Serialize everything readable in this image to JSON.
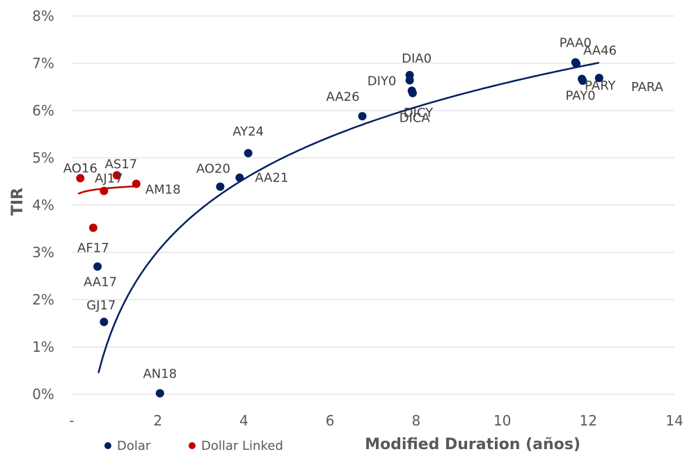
{
  "chart_data": {
    "type": "scatter",
    "xlabel": "Modified Duration (años)",
    "ylabel": "TIR",
    "xlim": [
      0,
      14
    ],
    "ylim": [
      0,
      8
    ],
    "x_ticks": [
      "-",
      "2",
      "4",
      "6",
      "8",
      "10",
      "12",
      "14"
    ],
    "y_ticks": [
      "0%",
      "1%",
      "2%",
      "3%",
      "4%",
      "5%",
      "6%",
      "7%",
      "8%"
    ],
    "grid": "horizontal",
    "legend_position": "bottom-left",
    "series": [
      {
        "name": "Dolar",
        "color": "#002060",
        "points": [
          {
            "label": "AN18",
            "x": 2.05,
            "y": 0.02
          },
          {
            "label": "GJ17",
            "x": 0.75,
            "y": 1.53
          },
          {
            "label": "AA17",
            "x": 0.6,
            "y": 2.7
          },
          {
            "label": "AO20",
            "x": 3.45,
            "y": 4.39
          },
          {
            "label": "AA21",
            "x": 3.9,
            "y": 4.58
          },
          {
            "label": "AY24",
            "x": 4.1,
            "y": 5.1
          },
          {
            "label": "AA26",
            "x": 6.75,
            "y": 5.88
          },
          {
            "label": "DIA0",
            "x": 7.85,
            "y": 6.75
          },
          {
            "label": "DIY0",
            "x": 7.85,
            "y": 6.64
          },
          {
            "label": "DICA",
            "x": 7.9,
            "y": 6.42
          },
          {
            "label": "DICY",
            "x": 7.92,
            "y": 6.37
          },
          {
            "label": "PAA0",
            "x": 11.7,
            "y": 7.02
          },
          {
            "label": "AA46",
            "x": 11.72,
            "y": 6.99
          },
          {
            "label": "PAY0",
            "x": 11.85,
            "y": 6.67
          },
          {
            "label": "PARY",
            "x": 11.87,
            "y": 6.63
          },
          {
            "label": "PARA",
            "x": 12.25,
            "y": 6.69
          }
        ]
      },
      {
        "name": "Dollar Linked",
        "color": "#c00000",
        "points": [
          {
            "label": "AO16",
            "x": 0.2,
            "y": 4.57
          },
          {
            "label": "AS17",
            "x": 1.05,
            "y": 4.63
          },
          {
            "label": "AJ17",
            "x": 0.75,
            "y": 4.3
          },
          {
            "label": "AM18",
            "x": 1.5,
            "y": 4.45
          },
          {
            "label": "AF17",
            "x": 0.5,
            "y": 3.52
          }
        ]
      }
    ],
    "trendlines": [
      {
        "series": "Dolar",
        "type": "logarithmic",
        "x_range": [
          0.62,
          12.25
        ],
        "a": 1.5,
        "b": 2.2
      },
      {
        "series": "Dollar Linked",
        "type": "logarithmic",
        "x_range": [
          0.15,
          1.55
        ],
        "a": 4.37,
        "b": 0.07
      }
    ]
  }
}
